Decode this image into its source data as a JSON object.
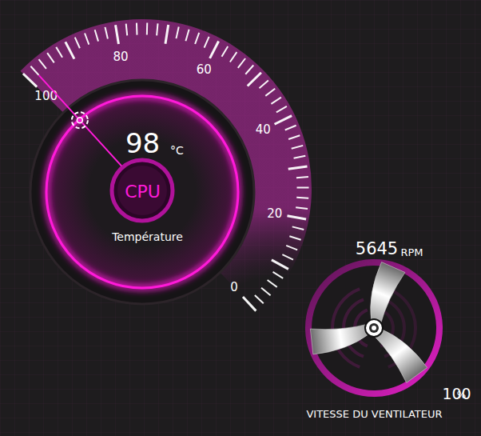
{
  "chart_data": [
    {
      "type": "gauge",
      "title": "Température",
      "label": "CPU",
      "value": 98,
      "unit": "°C",
      "ylim": [
        0,
        100
      ],
      "yticks": [
        0,
        20,
        40,
        60,
        80,
        100
      ],
      "color": "#ff1ad9"
    },
    {
      "type": "gauge",
      "title": "VITESSE DU VENTILATEUR",
      "value": 100,
      "unit": "%",
      "rpm": 5645,
      "rpm_unit": "RPM",
      "ylim": [
        0,
        100
      ],
      "color": "#e51fc8"
    }
  ]
}
